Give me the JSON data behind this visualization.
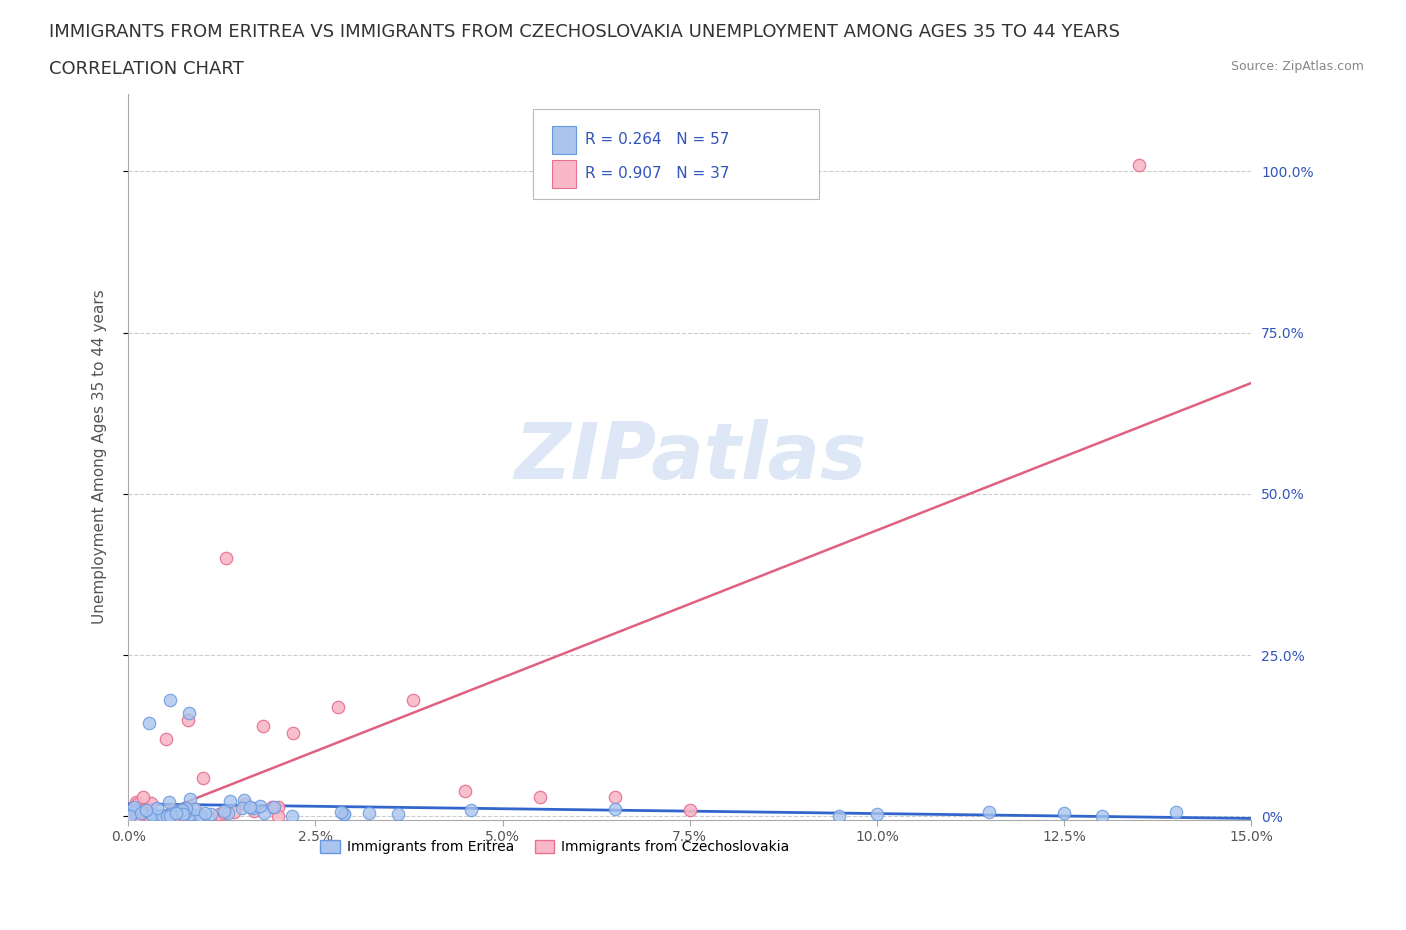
{
  "title_line1": "IMMIGRANTS FROM ERITREA VS IMMIGRANTS FROM CZECHOSLOVAKIA UNEMPLOYMENT AMONG AGES 35 TO 44 YEARS",
  "title_line2": "CORRELATION CHART",
  "source_text": "Source: ZipAtlas.com",
  "ylabel": "Unemployment Among Ages 35 to 44 years",
  "xlim": [
    0.0,
    0.15
  ],
  "ylim": [
    -0.005,
    1.12
  ],
  "xtick_vals": [
    0.0,
    0.025,
    0.05,
    0.075,
    0.1,
    0.125,
    0.15
  ],
  "xtick_labels": [
    "0.0%",
    "2.5%",
    "5.0%",
    "7.5%",
    "10.0%",
    "12.5%",
    "15.0%"
  ],
  "ytick_vals": [
    0.0,
    0.25,
    0.5,
    0.75,
    1.0
  ],
  "ytick_right_labels": [
    "0%",
    "25.0%",
    "50.0%",
    "75.0%",
    "100.0%"
  ],
  "series1_name": "Immigrants from Eritrea",
  "series1_color": "#aac4ee",
  "series1_edge": "#6699dd",
  "series1_line_color": "#3366cc",
  "series1_R": 0.264,
  "series1_N": 57,
  "series2_name": "Immigrants from Czechoslovakia",
  "series2_color": "#f8b8c8",
  "series2_edge": "#e87090",
  "series2_line_color": "#e06080",
  "series2_R": 0.907,
  "series2_N": 37,
  "watermark": "ZIPatlas",
  "watermark_color": "#c8d8f0",
  "grid_color": "#cccccc",
  "background_color": "#ffffff",
  "title_fontsize": 13,
  "axis_label_fontsize": 11,
  "tick_fontsize": 10,
  "legend_color": "#3355bb"
}
